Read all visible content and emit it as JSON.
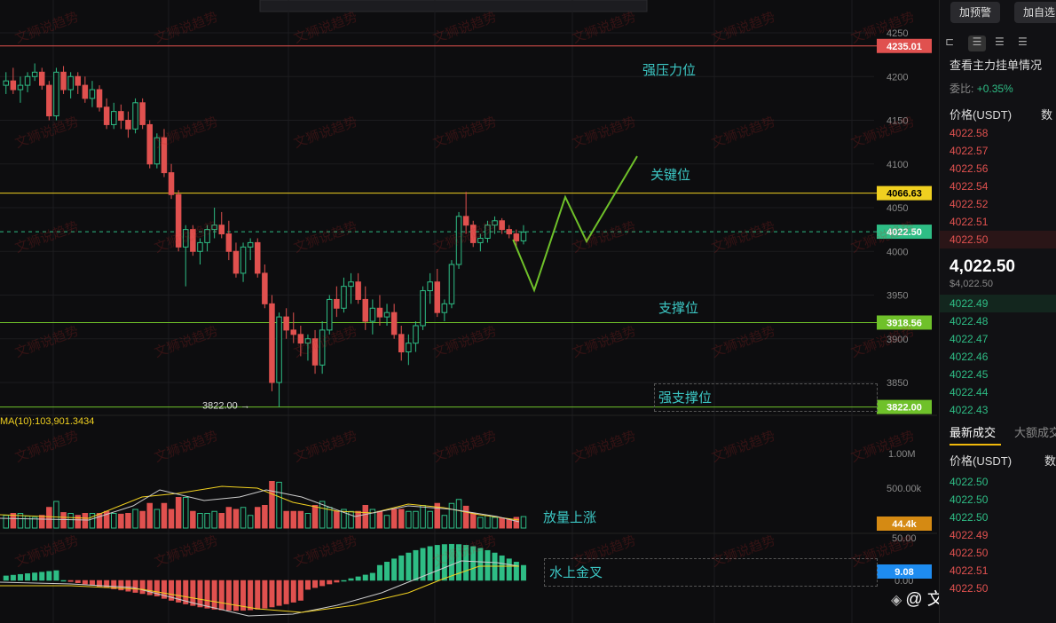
{
  "watermark_text": "文狮说趋势",
  "branding": {
    "handle": "@ 文狮说趋势"
  },
  "chart_data": {
    "type": "candlestick",
    "price_axis": {
      "ticks": [
        4250,
        4200,
        4150,
        4100,
        4050,
        4000,
        3950,
        3900,
        3850
      ]
    },
    "levels": [
      {
        "value": 4235.01,
        "label": "4235.01",
        "color": "#e0514f",
        "text": "强压力位"
      },
      {
        "value": 4066.63,
        "label": "4066.63",
        "color": "#f0d020",
        "text": "关键位"
      },
      {
        "value": 4022.5,
        "label": "4022.50",
        "color": "#2ebd85",
        "dashed": true
      },
      {
        "value": 3918.56,
        "label": "3918.56",
        "color": "#6fc12a",
        "text": "支撑位"
      },
      {
        "value": 3822.0,
        "label": "3822.00",
        "color": "#6fc12a",
        "text": "强支撑位"
      }
    ],
    "low_marker": {
      "value": 3822.0,
      "label": "3822.00"
    },
    "ohlc": [
      [
        4190,
        4205,
        4180,
        4195
      ],
      [
        4195,
        4210,
        4180,
        4185
      ],
      [
        4185,
        4200,
        4170,
        4190
      ],
      [
        4190,
        4205,
        4182,
        4200
      ],
      [
        4200,
        4215,
        4195,
        4205
      ],
      [
        4205,
        4210,
        4185,
        4190
      ],
      [
        4190,
        4195,
        4150,
        4155
      ],
      [
        4155,
        4210,
        4150,
        4205
      ],
      [
        4205,
        4212,
        4180,
        4185
      ],
      [
        4185,
        4205,
        4175,
        4200
      ],
      [
        4200,
        4205,
        4180,
        4190
      ],
      [
        4190,
        4200,
        4170,
        4175
      ],
      [
        4175,
        4195,
        4165,
        4185
      ],
      [
        4185,
        4190,
        4160,
        4165
      ],
      [
        4165,
        4175,
        4140,
        4145
      ],
      [
        4145,
        4170,
        4140,
        4160
      ],
      [
        4160,
        4168,
        4140,
        4150
      ],
      [
        4150,
        4160,
        4130,
        4140
      ],
      [
        4140,
        4175,
        4135,
        4170
      ],
      [
        4170,
        4175,
        4140,
        4145
      ],
      [
        4145,
        4150,
        4095,
        4100
      ],
      [
        4100,
        4135,
        4095,
        4130
      ],
      [
        4130,
        4140,
        4085,
        4090
      ],
      [
        4090,
        4100,
        4060,
        4065
      ],
      [
        4065,
        4070,
        4000,
        4005
      ],
      [
        4005,
        4030,
        3960,
        4025
      ],
      [
        4025,
        4030,
        3995,
        4000
      ],
      [
        4000,
        4015,
        3985,
        4010
      ],
      [
        4010,
        4030,
        4000,
        4025
      ],
      [
        4025,
        4050,
        4015,
        4030
      ],
      [
        4030,
        4045,
        4015,
        4020
      ],
      [
        4020,
        4035,
        3990,
        4000
      ],
      [
        4000,
        4010,
        3970,
        3975
      ],
      [
        3975,
        4010,
        3965,
        4005
      ],
      [
        4005,
        4015,
        3990,
        4010
      ],
      [
        4010,
        4015,
        3970,
        3975
      ],
      [
        3975,
        3985,
        3935,
        3940
      ],
      [
        3940,
        3950,
        3840,
        3850
      ],
      [
        3850,
        3930,
        3822,
        3925
      ],
      [
        3925,
        3935,
        3900,
        3910
      ],
      [
        3910,
        3930,
        3895,
        3905
      ],
      [
        3905,
        3915,
        3880,
        3895
      ],
      [
        3895,
        3905,
        3875,
        3900
      ],
      [
        3900,
        3910,
        3860,
        3870
      ],
      [
        3870,
        3920,
        3860,
        3910
      ],
      [
        3910,
        3950,
        3905,
        3945
      ],
      [
        3945,
        3960,
        3925,
        3935
      ],
      [
        3935,
        3970,
        3930,
        3960
      ],
      [
        3960,
        3975,
        3940,
        3965
      ],
      [
        3965,
        3975,
        3940,
        3945
      ],
      [
        3945,
        3960,
        3910,
        3920
      ],
      [
        3920,
        3945,
        3905,
        3935
      ],
      [
        3935,
        3950,
        3915,
        3925
      ],
      [
        3925,
        3940,
        3915,
        3930
      ],
      [
        3930,
        3940,
        3900,
        3905
      ],
      [
        3905,
        3915,
        3875,
        3885
      ],
      [
        3885,
        3905,
        3870,
        3895
      ],
      [
        3895,
        3920,
        3885,
        3915
      ],
      [
        3915,
        3960,
        3910,
        3955
      ],
      [
        3955,
        3975,
        3940,
        3965
      ],
      [
        3965,
        3980,
        3925,
        3930
      ],
      [
        3930,
        3945,
        3920,
        3940
      ],
      [
        3940,
        3990,
        3935,
        3985
      ],
      [
        3985,
        4045,
        3980,
        4040
      ],
      [
        4040,
        4068,
        4020,
        4030
      ],
      [
        4030,
        4035,
        4005,
        4010
      ],
      [
        4010,
        4020,
        4000,
        4015
      ],
      [
        4015,
        4035,
        4010,
        4030
      ],
      [
        4030,
        4040,
        4020,
        4035
      ],
      [
        4035,
        4038,
        4020,
        4025
      ],
      [
        4025,
        4030,
        4015,
        4020
      ],
      [
        4020,
        4025,
        4005,
        4012
      ],
      [
        4012,
        4030,
        4008,
        4022
      ]
    ],
    "volume": {
      "label": "MA(10):103,901.3434",
      "ticks": [
        "1.00M",
        "500.00k"
      ],
      "current": "44.4k",
      "annotation": "放量上涨"
    },
    "macd": {
      "ticks": [
        "50.00",
        "0.00"
      ],
      "current": "9.08",
      "annotation": "水上金叉"
    }
  },
  "sidebar": {
    "buttons": [
      "加预警",
      "加自选"
    ],
    "main_order_title": "查看主力挂单情况",
    "ratio_label": "委比:",
    "ratio_value": "+0.35%",
    "price_header": "价格(USDT)",
    "qty_header": "数",
    "asks": [
      "4022.58",
      "4022.57",
      "4022.56",
      "4022.54",
      "4022.52",
      "4022.51",
      "4022.50"
    ],
    "last_price": "4,022.50",
    "last_price_sub": "$4,022.50",
    "bids": [
      "4022.49",
      "4022.48",
      "4022.47",
      "4022.46",
      "4022.45",
      "4022.44",
      "4022.43"
    ],
    "trade_tabs": [
      "最新成交",
      "大额成交"
    ],
    "trade_price_header": "价格(USDT)",
    "trades": [
      {
        "p": "4022.50",
        "side": "buy"
      },
      {
        "p": "4022.50",
        "side": "buy"
      },
      {
        "p": "4022.50",
        "side": "buy"
      },
      {
        "p": "4022.49",
        "side": "sell"
      },
      {
        "p": "4022.50",
        "side": "sell"
      },
      {
        "p": "4022.51",
        "side": "sell"
      },
      {
        "p": "4022.50",
        "side": "sell"
      }
    ]
  }
}
